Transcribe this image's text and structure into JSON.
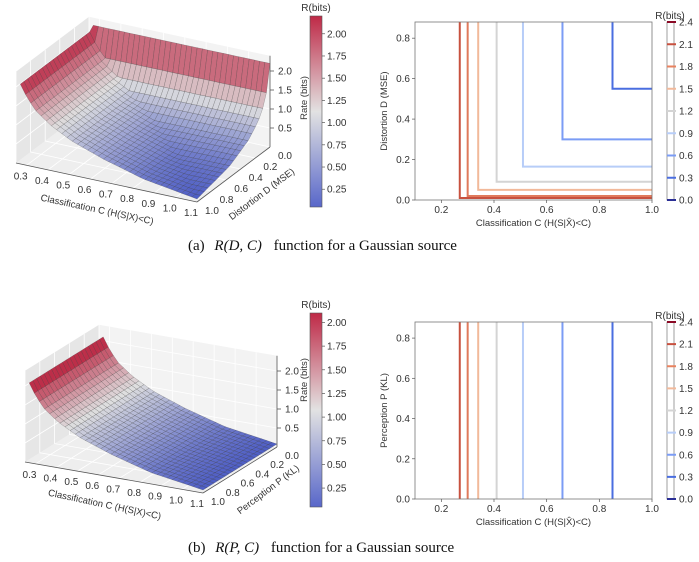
{
  "captions": {
    "a": {
      "label": "(a)",
      "math": "R(D, C)",
      "text": "function for a Gaussian source"
    },
    "b": {
      "label": "(b)",
      "math": "R(P, C)",
      "text": "function for a Gaussian source"
    }
  },
  "colormap": [
    "#3b4cc0",
    "#dddddd",
    "#b40426"
  ],
  "chart_data": [
    {
      "type": "surface3d",
      "panel": "a",
      "xlabel": "Classification C (H(S|X)<C)",
      "ylabel": "Distortion D (MSE)",
      "zlabel": "Rate (bits)",
      "xticks": [
        "0.3",
        "0.4",
        "0.5",
        "0.6",
        "0.7",
        "0.8",
        "0.9",
        "1.0",
        "1.1"
      ],
      "yticks": [
        "0.0",
        "0.2",
        "0.4",
        "0.6",
        "0.8",
        "1.0"
      ],
      "zticks": [
        "0.5",
        "1.0",
        "1.5",
        "2.0"
      ],
      "xlim": [
        0.25,
        1.1
      ],
      "ylim": [
        0.0,
        1.0
      ],
      "zlim": [
        0,
        2.4
      ],
      "colorbar": {
        "title": "R(bits)",
        "range": [
          0.05,
          2.2
        ],
        "ticks": [
          "0.25",
          "0.50",
          "0.75",
          "1.00",
          "1.25",
          "1.50",
          "1.75",
          "2.00"
        ]
      },
      "rate_vs_c": [
        [
          0.27,
          2.1
        ],
        [
          0.3,
          1.8
        ],
        [
          0.34,
          1.5
        ],
        [
          0.41,
          1.2
        ],
        [
          0.51,
          0.9
        ],
        [
          0.66,
          0.6
        ],
        [
          0.85,
          0.3
        ],
        [
          1.1,
          0.08
        ]
      ],
      "rate_vs_d": [
        [
          0.0,
          2.2
        ],
        [
          0.01,
          2.1
        ],
        [
          0.02,
          1.8
        ],
        [
          0.05,
          1.5
        ],
        [
          0.09,
          1.2
        ],
        [
          0.165,
          0.9
        ],
        [
          0.3,
          0.6
        ],
        [
          0.55,
          0.3
        ],
        [
          1.0,
          0.08
        ]
      ]
    },
    {
      "type": "contour",
      "panel": "a",
      "xlabel": "Classification C (H(S|X̂)<C)",
      "ylabel": "Distortion D (MSE)",
      "xticks": [
        "0.2",
        "0.4",
        "0.6",
        "0.8",
        "1.0"
      ],
      "yticks": [
        "0.0",
        "0.2",
        "0.4",
        "0.6",
        "0.8"
      ],
      "xlim": [
        0.1,
        1.0
      ],
      "ylim": [
        0.0,
        0.88
      ],
      "colorbar": {
        "title": "R(bits)",
        "ticks": [
          "0.0",
          "0.3",
          "0.6",
          "0.9",
          "1.2",
          "1.5",
          "1.8",
          "2.1",
          "2.4"
        ],
        "tick_colors": [
          "#2b2f95",
          "#4a6ee0",
          "#7b9cf5",
          "#b7cdf8",
          "#d4d4d4",
          "#f2b99a",
          "#e8825f",
          "#c8513f",
          "#8b0a26"
        ]
      },
      "levels": [
        {
          "rate": 2.1,
          "c": 0.27,
          "d": 0.01,
          "color": "#c8513f"
        },
        {
          "rate": 1.8,
          "c": 0.3,
          "d": 0.02,
          "color": "#e07a5c"
        },
        {
          "rate": 1.5,
          "c": 0.34,
          "d": 0.05,
          "color": "#f2b99a"
        },
        {
          "rate": 1.2,
          "c": 0.41,
          "d": 0.09,
          "color": "#d4d4d4"
        },
        {
          "rate": 0.9,
          "c": 0.51,
          "d": 0.165,
          "color": "#b7cdf8"
        },
        {
          "rate": 0.6,
          "c": 0.66,
          "d": 0.3,
          "color": "#7b9cf5"
        },
        {
          "rate": 0.3,
          "c": 0.85,
          "d": 0.55,
          "color": "#4a6ee0"
        }
      ]
    },
    {
      "type": "surface3d",
      "panel": "b",
      "xlabel": "Classification C (H(S|X)<C)",
      "ylabel": "Perception P (KL)",
      "zlabel": "Rate (bits)",
      "xticks": [
        "0.3",
        "0.4",
        "0.5",
        "0.6",
        "0.7",
        "0.8",
        "0.9",
        "1.0",
        "1.1"
      ],
      "yticks": [
        "0.0",
        "0.2",
        "0.4",
        "0.6",
        "0.8",
        "1.0"
      ],
      "zticks": [
        "0.5",
        "1.0",
        "1.5",
        "2.0"
      ],
      "xlim": [
        0.25,
        1.1
      ],
      "ylim": [
        0.0,
        1.0
      ],
      "zlim": [
        0,
        2.4
      ],
      "colorbar": {
        "title": "R(bits)",
        "range": [
          0.05,
          2.1
        ],
        "ticks": [
          "0.25",
          "0.50",
          "0.75",
          "1.00",
          "1.25",
          "1.50",
          "1.75",
          "2.00"
        ]
      },
      "rate_vs_c": [
        [
          0.27,
          2.1
        ],
        [
          0.3,
          1.8
        ],
        [
          0.34,
          1.5
        ],
        [
          0.41,
          1.2
        ],
        [
          0.51,
          0.9
        ],
        [
          0.66,
          0.6
        ],
        [
          0.85,
          0.3
        ],
        [
          1.1,
          0.08
        ]
      ]
    },
    {
      "type": "contour",
      "panel": "b",
      "xlabel": "Classification C (H(S|X̂)<C)",
      "ylabel": "Perception P (KL)",
      "xticks": [
        "0.2",
        "0.4",
        "0.6",
        "0.8",
        "1.0"
      ],
      "yticks": [
        "0.0",
        "0.2",
        "0.4",
        "0.6",
        "0.8"
      ],
      "xlim": [
        0.1,
        1.0
      ],
      "ylim": [
        0.0,
        0.88
      ],
      "colorbar": {
        "title": "R(bits)",
        "ticks": [
          "0.0",
          "0.3",
          "0.6",
          "0.9",
          "1.2",
          "1.5",
          "1.8",
          "2.1",
          "2.4"
        ],
        "tick_colors": [
          "#2b2f95",
          "#4a6ee0",
          "#7b9cf5",
          "#b7cdf8",
          "#d4d4d4",
          "#f2b99a",
          "#e8825f",
          "#c8513f",
          "#8b0a26"
        ]
      },
      "levels": [
        {
          "rate": 2.1,
          "c": 0.27,
          "color": "#c8513f"
        },
        {
          "rate": 1.8,
          "c": 0.3,
          "color": "#e07a5c"
        },
        {
          "rate": 1.5,
          "c": 0.34,
          "color": "#f2b99a"
        },
        {
          "rate": 1.2,
          "c": 0.41,
          "color": "#d4d4d4"
        },
        {
          "rate": 0.9,
          "c": 0.51,
          "color": "#b7cdf8"
        },
        {
          "rate": 0.6,
          "c": 0.66,
          "color": "#7b9cf5"
        },
        {
          "rate": 0.3,
          "c": 0.85,
          "color": "#4a6ee0"
        }
      ]
    }
  ]
}
